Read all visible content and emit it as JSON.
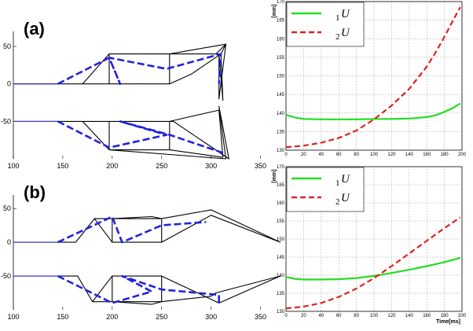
{
  "panels": [
    {
      "label": "(a)"
    },
    {
      "label": "(b)"
    }
  ],
  "chart_data": [
    {
      "type": "line",
      "panel": "(a) mechanism",
      "xlim": [
        100,
        375
      ],
      "ylim": [
        -100,
        70
      ],
      "xticks": [
        100,
        150,
        200,
        250,
        300,
        350
      ],
      "yticks": [
        50,
        0,
        -50
      ],
      "grid": false,
      "series": [
        {
          "style": "solid",
          "color": "#000000",
          "points": [
            [
              100,
              0
            ],
            [
              170,
              0
            ],
            [
              197,
              40
            ],
            [
              258,
              40
            ],
            [
              258,
              0
            ],
            [
              197,
              0
            ],
            [
              197,
              40
            ],
            [
              258,
              40
            ],
            [
              315,
              53
            ],
            [
              305,
              40
            ],
            [
              258,
              40
            ],
            [
              197,
              40
            ],
            [
              197,
              0
            ],
            [
              258,
              0
            ],
            [
              280,
              13
            ],
            [
              310,
              40
            ],
            [
              315,
              53
            ],
            [
              308,
              -20
            ],
            [
              308,
              40
            ],
            [
              312,
              -22
            ],
            [
              310,
              40
            ],
            [
              258,
              40
            ],
            [
              258,
              0
            ],
            [
              197,
              0
            ],
            [
              170,
              0
            ],
            [
              100,
              0
            ]
          ]
        },
        {
          "style": "solid",
          "color": "#000000",
          "points": [
            [
              100,
              -50
            ],
            [
              170,
              -50
            ],
            [
              197,
              -88
            ],
            [
              197,
              -50
            ],
            [
              258,
              -50
            ],
            [
              258,
              -88
            ],
            [
              197,
              -88
            ],
            [
              315,
              -100
            ],
            [
              308,
              -30
            ],
            [
              318,
              -100
            ],
            [
              262,
              -50
            ],
            [
              258,
              -50
            ],
            [
              258,
              -88
            ],
            [
              312,
              -98
            ],
            [
              308,
              -35
            ],
            [
              258,
              -50
            ],
            [
              197,
              -50
            ],
            [
              170,
              -50
            ],
            [
              100,
              -50
            ]
          ]
        },
        {
          "style": "solid",
          "color": "#3333cc",
          "points": [
            [
              100,
              0
            ],
            [
              145,
              0
            ]
          ]
        },
        {
          "style": "solid",
          "color": "#3333cc",
          "points": [
            [
              100,
              -50
            ],
            [
              145,
              -50
            ]
          ]
        },
        {
          "style": "dashed",
          "color": "#2222dd",
          "points": [
            [
              145,
              0
            ],
            [
              197,
              35
            ],
            [
              208,
              0
            ],
            [
              197,
              35
            ],
            [
              255,
              20
            ],
            [
              310,
              40
            ],
            [
              308,
              0
            ]
          ]
        },
        {
          "style": "dashed",
          "color": "#2222dd",
          "points": [
            [
              145,
              -50
            ],
            [
              197,
              -85
            ],
            [
              255,
              -68
            ],
            [
              208,
              -50
            ],
            [
              258,
              -68
            ],
            [
              312,
              -92
            ]
          ]
        }
      ]
    },
    {
      "type": "line",
      "panel": "(a) time series",
      "xlabel": "",
      "ylabel": "[mm]",
      "xlim": [
        0,
        200
      ],
      "ylim": [
        130,
        170
      ],
      "xticks": [
        0,
        20,
        40,
        60,
        80,
        100,
        120,
        140,
        160,
        180,
        200
      ],
      "yticks": [
        130,
        135,
        140,
        145,
        150,
        155,
        160,
        165,
        170
      ],
      "grid": true,
      "legend": "top-left",
      "series": [
        {
          "name": "U",
          "sub": "1",
          "style": "solid",
          "color": "#22dd22",
          "x": [
            0,
            10,
            20,
            40,
            60,
            80,
            100,
            120,
            140,
            160,
            170,
            180,
            190,
            198
          ],
          "y": [
            139.5,
            138.8,
            138.4,
            138.3,
            138.3,
            138.3,
            138.4,
            138.4,
            138.5,
            138.9,
            139.4,
            140.3,
            141.4,
            142.6
          ]
        },
        {
          "name": "U",
          "sub": "2",
          "style": "dashed",
          "color": "#dd2222",
          "x": [
            0,
            20,
            40,
            60,
            80,
            100,
            120,
            140,
            160,
            170,
            180,
            190,
            198
          ],
          "y": [
            130.8,
            131.2,
            132.0,
            133.3,
            135.3,
            138.3,
            142.0,
            146.5,
            152.5,
            156.3,
            160.5,
            165.0,
            168.5
          ]
        }
      ]
    },
    {
      "type": "line",
      "panel": "(b) mechanism",
      "xlim": [
        100,
        375
      ],
      "ylim": [
        -100,
        70
      ],
      "xticks": [
        100,
        150,
        200,
        250,
        300,
        350
      ],
      "yticks": [
        50,
        0,
        -50
      ],
      "grid": false,
      "series": [
        {
          "style": "solid",
          "color": "#000000",
          "points": [
            [
              100,
              0
            ],
            [
              163,
              0
            ],
            [
              182,
              35
            ],
            [
              200,
              35
            ],
            [
              200,
              0
            ],
            [
              250,
              0
            ],
            [
              250,
              35
            ],
            [
              200,
              35
            ],
            [
              240,
              38
            ],
            [
              250,
              35
            ],
            [
              300,
              48
            ],
            [
              370,
              0
            ],
            [
              300,
              40
            ],
            [
              250,
              0
            ],
            [
              200,
              0
            ],
            [
              182,
              35
            ],
            [
              163,
              0
            ],
            [
              100,
              0
            ]
          ]
        },
        {
          "style": "solid",
          "color": "#000000",
          "points": [
            [
              100,
              -50
            ],
            [
              165,
              -50
            ],
            [
              180,
              -88
            ],
            [
              200,
              -88
            ],
            [
              200,
              -50
            ],
            [
              250,
              -50
            ],
            [
              250,
              -88
            ],
            [
              200,
              -88
            ],
            [
              240,
              -92
            ],
            [
              250,
              -88
            ],
            [
              300,
              -80
            ],
            [
              305,
              -75
            ],
            [
              370,
              -50
            ],
            [
              308,
              -90
            ],
            [
              250,
              -50
            ],
            [
              200,
              -50
            ],
            [
              180,
              -88
            ],
            [
              165,
              -50
            ],
            [
              100,
              -50
            ]
          ]
        },
        {
          "style": "solid",
          "color": "#3333cc",
          "points": [
            [
              100,
              0
            ],
            [
              145,
              0
            ]
          ]
        },
        {
          "style": "solid",
          "color": "#3333cc",
          "points": [
            [
              100,
              -50
            ],
            [
              145,
              -50
            ]
          ]
        },
        {
          "style": "dashed",
          "color": "#2222dd",
          "points": [
            [
              145,
              0
            ],
            [
              200,
              38
            ],
            [
              210,
              0
            ],
            [
              250,
              25
            ],
            [
              295,
              30
            ]
          ]
        },
        {
          "style": "dashed",
          "color": "#2222dd",
          "points": [
            [
              145,
              -50
            ],
            [
              200,
              -90
            ],
            [
              240,
              -73
            ],
            [
              210,
              -50
            ],
            [
              250,
              -70
            ],
            [
              308,
              -78
            ],
            [
              308,
              -90
            ]
          ]
        }
      ]
    },
    {
      "type": "line",
      "panel": "(b) time series",
      "xlabel": "Time[ms]",
      "ylabel": "[mm]",
      "xlim": [
        0,
        200
      ],
      "ylim": [
        130,
        170
      ],
      "xticks": [
        0,
        20,
        40,
        60,
        80,
        100,
        120,
        140,
        160,
        180,
        200
      ],
      "yticks": [
        130,
        135,
        140,
        145,
        150,
        155,
        160,
        165,
        170
      ],
      "grid": true,
      "legend": "top-left",
      "series": [
        {
          "name": "U",
          "sub": "1",
          "style": "solid",
          "color": "#22dd22",
          "x": [
            0,
            10,
            20,
            40,
            60,
            80,
            100,
            120,
            140,
            160,
            180,
            198
          ],
          "y": [
            139.5,
            139.0,
            138.8,
            138.8,
            138.9,
            139.2,
            139.8,
            140.6,
            141.5,
            142.5,
            143.6,
            144.8
          ]
        },
        {
          "name": "U",
          "sub": "2",
          "style": "dashed",
          "color": "#dd2222",
          "x": [
            0,
            20,
            40,
            60,
            80,
            100,
            120,
            140,
            160,
            180,
            198
          ],
          "y": [
            130.8,
            131.3,
            132.3,
            134.0,
            136.3,
            139.2,
            142.5,
            146.0,
            149.5,
            153.0,
            156.0
          ]
        }
      ]
    }
  ]
}
